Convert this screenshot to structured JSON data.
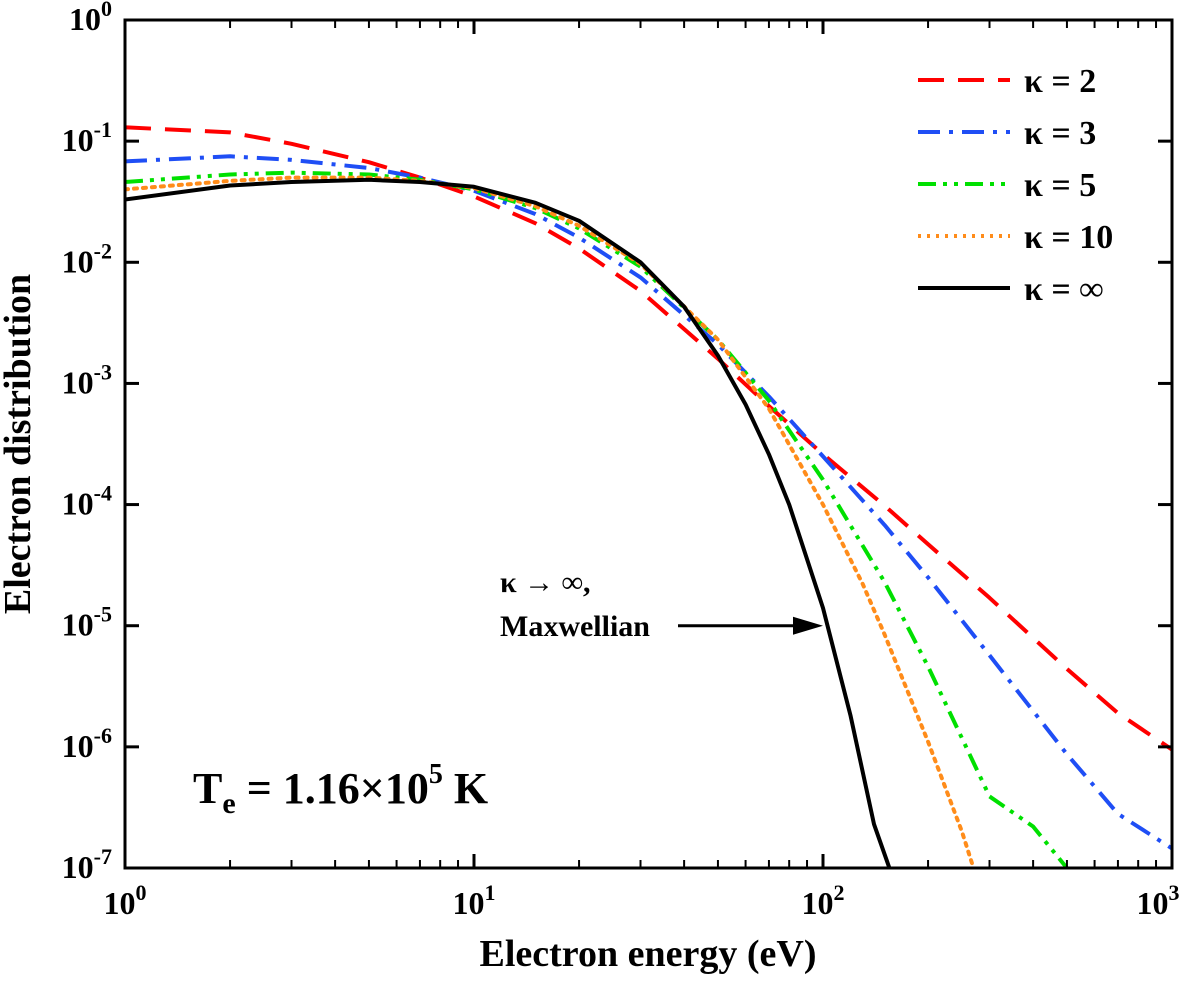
{
  "chart_data": {
    "type": "line",
    "title": "",
    "xlabel": "Electron energy (eV)",
    "ylabel": "Electron distribution",
    "xscale": "log",
    "yscale": "log",
    "xlim": [
      1,
      1000
    ],
    "ylim": [
      1e-07,
      1
    ],
    "x_ticks": [
      {
        "value": 1,
        "base": "10",
        "exp": "0"
      },
      {
        "value": 10,
        "base": "10",
        "exp": "1"
      },
      {
        "value": 100,
        "base": "10",
        "exp": "2"
      },
      {
        "value": 1000,
        "base": "10",
        "exp": "3"
      }
    ],
    "y_ticks": [
      {
        "value": 1,
        "base": "10",
        "exp": "0"
      },
      {
        "value": 0.1,
        "base": "10",
        "exp": "-1"
      },
      {
        "value": 0.01,
        "base": "10",
        "exp": "-2"
      },
      {
        "value": 0.001,
        "base": "10",
        "exp": "-3"
      },
      {
        "value": 0.0001,
        "base": "10",
        "exp": "-4"
      },
      {
        "value": 1e-05,
        "base": "10",
        "exp": "-5"
      },
      {
        "value": 1e-06,
        "base": "10",
        "exp": "-6"
      },
      {
        "value": 1e-07,
        "base": "10",
        "exp": "-7"
      }
    ],
    "legend_position": "top-right",
    "series": [
      {
        "name": "κ = 2",
        "color": "#ff0000",
        "style": "dashed",
        "x": [
          1,
          2,
          3,
          5,
          7,
          10,
          15,
          20,
          30,
          50,
          70,
          100,
          150,
          200,
          300,
          500,
          700,
          1000
        ],
        "y": [
          0.13,
          0.118,
          0.095,
          0.067,
          0.05,
          0.035,
          0.021,
          0.013,
          0.0058,
          0.0016,
          0.00065,
          0.00026,
          9.8e-05,
          4.7e-05,
          1.7e-05,
          4.4e-06,
          1.9e-06,
          9.5e-07
        ]
      },
      {
        "name": "κ = 3",
        "color": "#1f4ef5",
        "style": "dashdot",
        "x": [
          1,
          2,
          3,
          5,
          7,
          10,
          15,
          20,
          30,
          50,
          70,
          100,
          150,
          200,
          300,
          500,
          700,
          1000
        ],
        "y": [
          0.068,
          0.075,
          0.07,
          0.06,
          0.05,
          0.039,
          0.025,
          0.016,
          0.0075,
          0.0021,
          0.00078,
          0.00025,
          6.8e-05,
          2.5e-05,
          5.7e-06,
          8.7e-07,
          2.8e-07,
          1.45e-07
        ]
      },
      {
        "name": "κ = 5",
        "color": "#00e000",
        "style": "dashdotdot",
        "x": [
          1,
          2,
          3,
          5,
          7,
          10,
          15,
          20,
          30,
          50,
          70,
          100,
          150,
          200,
          300,
          400,
          500
        ],
        "y": [
          0.046,
          0.053,
          0.055,
          0.053,
          0.048,
          0.04,
          0.028,
          0.019,
          0.0092,
          0.0023,
          0.00072,
          0.00016,
          2.3e-05,
          4.6e-06,
          3.9e-07,
          2.2e-07,
          1e-07
        ]
      },
      {
        "name": "κ = 10",
        "color": "#ff8c1a",
        "style": "dotted",
        "x": [
          1,
          2,
          3,
          5,
          7,
          10,
          15,
          20,
          30,
          50,
          70,
          100,
          130,
          150,
          200,
          250,
          270
        ],
        "y": [
          0.04,
          0.047,
          0.05,
          0.05,
          0.047,
          0.041,
          0.029,
          0.02,
          0.0097,
          0.0023,
          0.00062,
          0.0001,
          2.2e-05,
          8.5e-06,
          1.1e-06,
          2e-07,
          1e-07
        ]
      },
      {
        "name": "κ = ∞",
        "color": "#000000",
        "style": "solid",
        "x": [
          1,
          2,
          3,
          5,
          7,
          10,
          15,
          20,
          30,
          40,
          50,
          60,
          70,
          80,
          100,
          120,
          140,
          155
        ],
        "y": [
          0.033,
          0.043,
          0.046,
          0.048,
          0.046,
          0.042,
          0.031,
          0.022,
          0.01,
          0.0043,
          0.0017,
          0.00067,
          0.00026,
          0.0001,
          1.4e-05,
          1.8e-06,
          2.3e-07,
          1e-07
        ]
      }
    ],
    "annotations": {
      "arrow_line1": "κ → ∞,",
      "arrow_line2": "Maxwellian",
      "arrow_target": {
        "x": 100,
        "y": 1e-05
      },
      "temperature_prefix": "T",
      "temperature_sub": "e",
      "temperature_mid": " = 1.16×10",
      "temperature_sup": "5",
      "temperature_suffix": " K"
    }
  }
}
